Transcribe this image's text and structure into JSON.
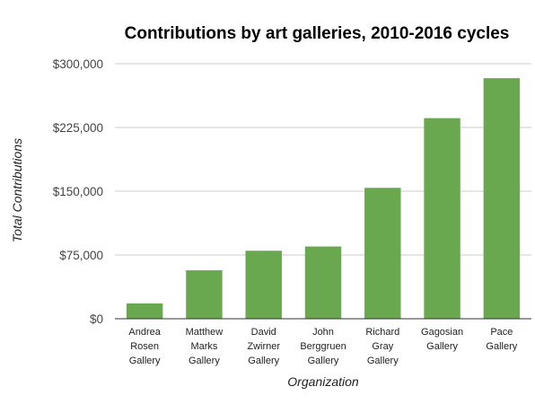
{
  "chart_data": {
    "type": "bar",
    "title": "Contributions by art galleries, 2010-2016 cycles",
    "xlabel": "Organization",
    "ylabel": "Total Contributions",
    "categories": [
      [
        "Andrea",
        "Rosen",
        "Gallery"
      ],
      [
        "Matthew",
        "Marks",
        "Gallery"
      ],
      [
        "David",
        "Zwirner",
        "Gallery"
      ],
      [
        "John",
        "Berggruen",
        "Gallery"
      ],
      [
        "Richard",
        "Gray",
        "Gallery"
      ],
      [
        "Gagosian",
        "Gallery"
      ],
      [
        "Pace",
        "Gallery"
      ]
    ],
    "values": [
      18000,
      57000,
      80000,
      85000,
      154000,
      236000,
      283000
    ],
    "ylim": [
      0,
      300000
    ],
    "yticks": [
      0,
      75000,
      150000,
      225000,
      300000
    ],
    "ytick_labels": [
      "$0",
      "$75,000",
      "$150,000",
      "$225,000",
      "$300,000"
    ],
    "grid": true,
    "colors": {
      "bar": "#6aa84f",
      "grid": "#cccccc",
      "baseline": "#333333"
    }
  }
}
